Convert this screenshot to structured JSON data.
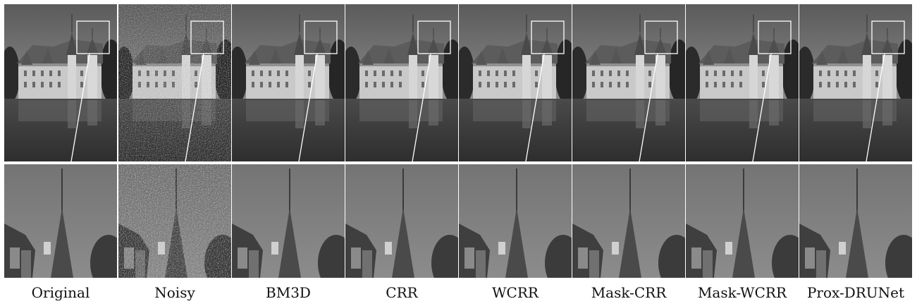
{
  "methods": [
    {
      "label": "Original",
      "id": "original"
    },
    {
      "label": "Noisy",
      "id": "noisy"
    },
    {
      "label": "BM3D",
      "id": "bm3d"
    },
    {
      "label": "CRR",
      "id": "crr"
    },
    {
      "label": "WCRR",
      "id": "wcrr"
    },
    {
      "label": "Mask-CRR",
      "id": "mask-crr"
    },
    {
      "label": "Mask-WCRR",
      "id": "mask-wcrr"
    },
    {
      "label": "Prox-DRUNet",
      "id": "prox-drunet"
    }
  ]
}
